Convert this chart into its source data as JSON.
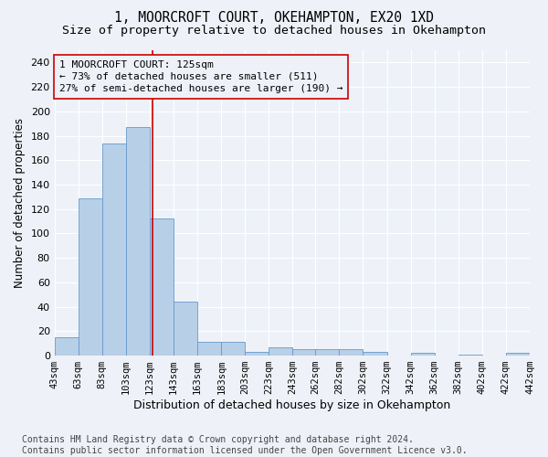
{
  "title": "1, MOORCROFT COURT, OKEHAMPTON, EX20 1XD",
  "subtitle": "Size of property relative to detached houses in Okehampton",
  "xlabel": "Distribution of detached houses by size in Okehampton",
  "ylabel": "Number of detached properties",
  "bin_lefts": [
    43,
    63,
    83,
    103,
    123,
    143,
    163,
    183,
    203,
    223,
    243,
    262,
    282,
    302,
    322,
    342,
    362,
    382,
    402,
    422
  ],
  "bar_heights": [
    15,
    129,
    174,
    187,
    112,
    44,
    11,
    11,
    3,
    7,
    5,
    5,
    5,
    3,
    0,
    2,
    0,
    1,
    0,
    2
  ],
  "bar_color": "#b8cfe8",
  "bar_edge_color": "#6699cc",
  "property_line_x": 125,
  "property_line_color": "#cc0000",
  "annotation_line1": "1 MOORCROFT COURT: 125sqm",
  "annotation_line2": "← 73% of detached houses are smaller (511)",
  "annotation_line3": "27% of semi-detached houses are larger (190) →",
  "annotation_box_edgecolor": "#cc0000",
  "ylim": [
    0,
    250
  ],
  "yticks": [
    0,
    20,
    40,
    60,
    80,
    100,
    120,
    140,
    160,
    180,
    200,
    220,
    240
  ],
  "tick_labels": [
    "43sqm",
    "63sqm",
    "83sqm",
    "103sqm",
    "123sqm",
    "143sqm",
    "163sqm",
    "183sqm",
    "203sqm",
    "223sqm",
    "243sqm",
    "262sqm",
    "282sqm",
    "302sqm",
    "322sqm",
    "342sqm",
    "362sqm",
    "382sqm",
    "402sqm",
    "422sqm",
    "442sqm"
  ],
  "footer_text": "Contains HM Land Registry data © Crown copyright and database right 2024.\nContains public sector information licensed under the Open Government Licence v3.0.",
  "background_color": "#eef2f8",
  "grid_color": "#ffffff",
  "title_fontsize": 10.5,
  "subtitle_fontsize": 9.5,
  "xlabel_fontsize": 9,
  "ylabel_fontsize": 8.5,
  "ytick_fontsize": 8,
  "xtick_fontsize": 7.5,
  "footer_fontsize": 7,
  "annot_fontsize": 8
}
